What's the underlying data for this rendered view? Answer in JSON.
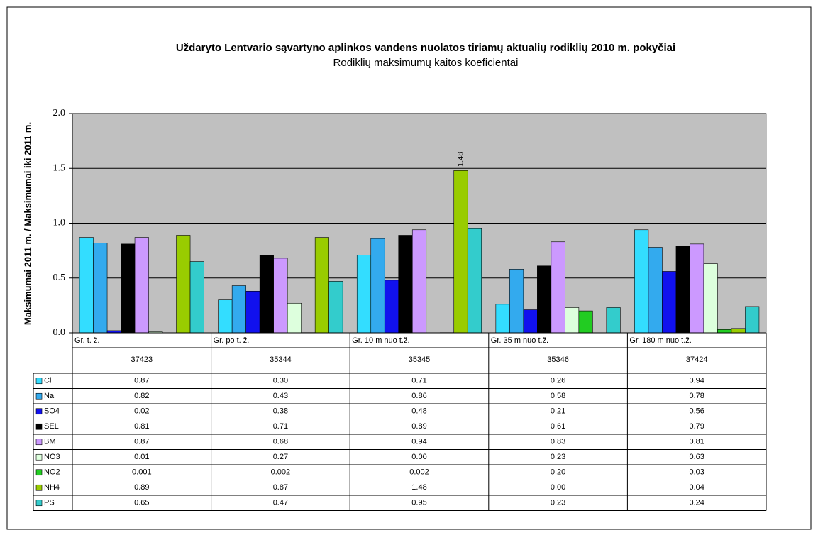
{
  "chart_data": {
    "type": "bar",
    "title": "Uždaryto Lentvario sąvartyno aplinkos vandens nuolatos tiriamų aktualių rodiklių 2010 m. pokyčiai",
    "subtitle": "Rodiklių maksimumų kaitos koeficientai",
    "y_label": "Maksimumai 2011 m. / Maksimumai iki 2011 m.",
    "categories": [
      "Gr. t. ž.",
      "Gr. po t. ž.",
      "Gr. 10 m nuo t.ž.",
      "Gr. 35 m nuo t.ž.",
      "Gr. 180 m nuo t.ž."
    ],
    "category_codes": [
      "37423",
      "35344",
      "35345",
      "35346",
      "37424"
    ],
    "ylim": [
      0,
      2
    ],
    "yticks": [
      {
        "value": 0,
        "label": "0.0"
      },
      0.5,
      {
        "value": 1,
        "label": "1.0"
      },
      1.5,
      {
        "value": 2,
        "label": "2.0"
      }
    ],
    "grid": true,
    "series": [
      {
        "name": "Cl",
        "color": "#33ddff",
        "values": [
          0.87,
          0.3,
          0.71,
          0.26,
          0.94
        ],
        "value_labels": [
          "0.87",
          "0.30",
          "0.71",
          "0.26",
          "0.94"
        ]
      },
      {
        "name": "Na",
        "color": "#33aaee",
        "values": [
          0.82,
          0.43,
          0.86,
          0.58,
          0.78
        ],
        "value_labels": [
          "0.82",
          "0.43",
          "0.86",
          "0.58",
          "0.78"
        ]
      },
      {
        "name": "SO4",
        "color": "#1111ee",
        "values": [
          0.02,
          0.38,
          0.48,
          0.21,
          0.56
        ],
        "value_labels": [
          "0.02",
          "0.38",
          "0.48",
          "0.21",
          "0.56"
        ]
      },
      {
        "name": "SEL",
        "color": "#000000",
        "values": [
          0.81,
          0.71,
          0.89,
          0.61,
          0.79
        ],
        "value_labels": [
          "0.81",
          "0.71",
          "0.89",
          "0.61",
          "0.79"
        ]
      },
      {
        "name": "BM",
        "color": "#cc99ff",
        "values": [
          0.87,
          0.68,
          0.94,
          0.83,
          0.81
        ],
        "value_labels": [
          "0.87",
          "0.68",
          "0.94",
          "0.83",
          "0.81"
        ]
      },
      {
        "name": "NO3",
        "color": "#ddffdd",
        "values": [
          0.01,
          0.27,
          0,
          0.23,
          0.63
        ],
        "value_labels": [
          "0.01",
          "0.27",
          "0.00",
          "0.23",
          "0.63"
        ]
      },
      {
        "name": "NO2",
        "color": "#22cc22",
        "values": [
          0.001,
          0.002,
          0.002,
          0.2,
          0.03
        ],
        "value_labels": [
          "0.001",
          "0.002",
          "0.002",
          "0.20",
          "0.03"
        ]
      },
      {
        "name": "NH4",
        "color": "#99cc00",
        "values": [
          0.89,
          0.87,
          1.48,
          0,
          0.04
        ],
        "value_labels": [
          "0.89",
          "0.87",
          "1.48",
          "0.00",
          "0.04"
        ]
      },
      {
        "name": "PS",
        "color": "#33cccc",
        "values": [
          0.65,
          0.47,
          0.95,
          0.23,
          0.24
        ],
        "value_labels": [
          "0.65",
          "0.47",
          "0.95",
          "0.23",
          "0.24"
        ]
      }
    ]
  }
}
